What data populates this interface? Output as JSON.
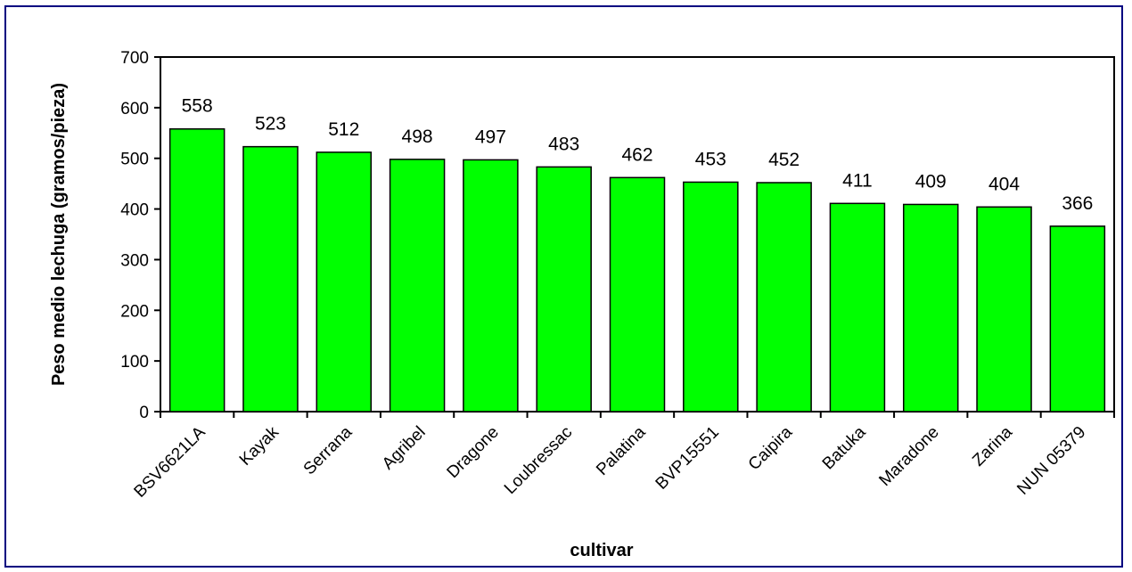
{
  "chart_data": {
    "type": "bar",
    "categories": [
      "BSV6621LA",
      "Kayak",
      "Serrana",
      "Agribel",
      "Dragone",
      "Loubressac",
      "Palatina",
      "BVP15551",
      "Caipira",
      "Batuka",
      "Maradone",
      "Zarina",
      "NUN 05379"
    ],
    "values": [
      558,
      523,
      512,
      498,
      497,
      483,
      462,
      453,
      452,
      411,
      409,
      404,
      366
    ],
    "data_labels": [
      "558",
      "523",
      "512",
      "498",
      "497",
      "483",
      "462",
      "453",
      "452",
      "411",
      "409",
      "404",
      "366"
    ],
    "xlabel": "cultivar",
    "ylabel": "Peso medio lechuga (gramos/pieza)",
    "ylim": [
      0,
      700
    ],
    "yticks": [
      0,
      100,
      200,
      300,
      400,
      500,
      600,
      700
    ],
    "bar_color": "#00ff00",
    "grid": false,
    "legend": "none"
  }
}
